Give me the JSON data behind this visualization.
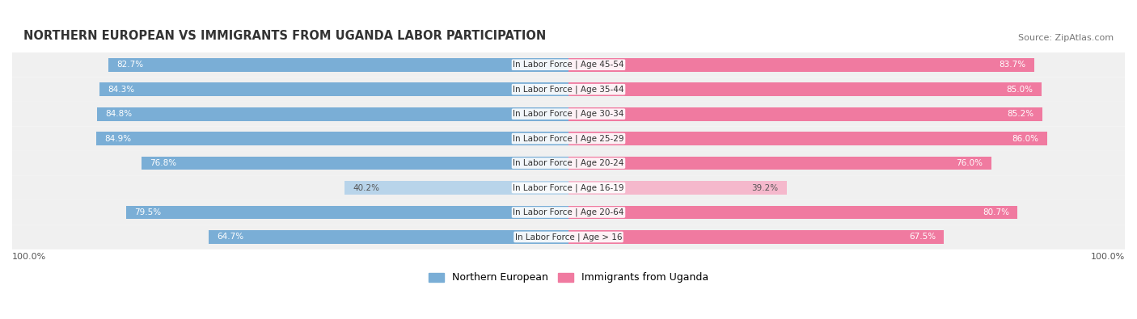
{
  "title": "NORTHERN EUROPEAN VS IMMIGRANTS FROM UGANDA LABOR PARTICIPATION",
  "source": "Source: ZipAtlas.com",
  "categories": [
    "In Labor Force | Age > 16",
    "In Labor Force | Age 20-64",
    "In Labor Force | Age 16-19",
    "In Labor Force | Age 20-24",
    "In Labor Force | Age 25-29",
    "In Labor Force | Age 30-34",
    "In Labor Force | Age 35-44",
    "In Labor Force | Age 45-54"
  ],
  "northern_european": [
    64.7,
    79.5,
    40.2,
    76.8,
    84.9,
    84.8,
    84.3,
    82.7
  ],
  "immigrants_uganda": [
    67.5,
    80.7,
    39.2,
    76.0,
    86.0,
    85.2,
    85.0,
    83.7
  ],
  "blue_color": "#7aaed6",
  "blue_light_color": "#b8d4ea",
  "pink_color": "#f07aa0",
  "pink_light_color": "#f5b8cc",
  "bg_row_color": "#f0f0f0",
  "bar_height": 0.55,
  "max_value": 100.0,
  "legend_blue": "Northern European",
  "legend_pink": "Immigrants from Uganda"
}
